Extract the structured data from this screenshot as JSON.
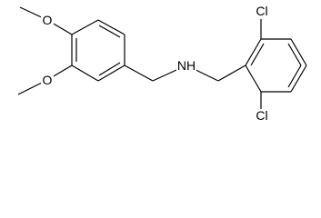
{
  "atoms": [
    {
      "label": "O"
    },
    {
      "label": "O"
    },
    {
      "label": "NH"
    },
    {
      "label": "Cl"
    },
    {
      "label": "Cl"
    }
  ]
}
